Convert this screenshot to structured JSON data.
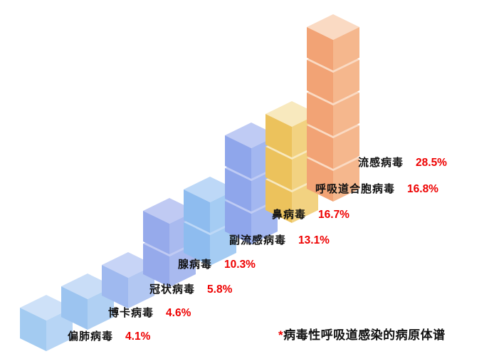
{
  "chart_data": {
    "type": "bar",
    "style": "isometric-cube-stack-staircase",
    "title": "",
    "xlabel": "",
    "ylabel": "",
    "legend": "none",
    "grid": false,
    "categories": [
      "偏肺病毒",
      "博卡病毒",
      "冠状病毒",
      "腺病毒",
      "副流感病毒",
      "鼻病毒",
      "呼吸道合胞病毒",
      "流感病毒"
    ],
    "values": [
      4.1,
      4.6,
      5.8,
      10.3,
      13.1,
      16.7,
      16.8,
      28.5
    ],
    "value_labels": [
      "4.1%",
      "4.6%",
      "5.8%",
      "10.3%",
      "13.1%",
      "16.7%",
      "16.8%",
      "28.5%"
    ],
    "cube_counts": [
      1,
      1,
      1,
      2,
      2,
      3,
      3,
      5
    ],
    "stack_colors": [
      {
        "top": "#CEE1F8",
        "left": "#A3CBF1",
        "right": "#B7D5F5"
      },
      {
        "top": "#C9DDF7",
        "left": "#9CC4F0",
        "right": "#B0D0F3"
      },
      {
        "top": "#C7D4F6",
        "left": "#9FB9EF",
        "right": "#B2C7F2"
      },
      {
        "top": "#C0CAF3",
        "left": "#96AAEB",
        "right": "#A9BAEF"
      },
      {
        "top": "#BDD8F7",
        "left": "#8EBCEF",
        "right": "#A5CCF3"
      },
      {
        "top": "#BFCBF4",
        "left": "#8FA6EB",
        "right": "#A3B7F0"
      },
      {
        "top": "#F8E9BE",
        "left": "#ECC25C",
        "right": "#F2D281"
      },
      {
        "top": "#FADAC3",
        "left": "#F2A375",
        "right": "#F5B78D"
      }
    ],
    "label_text_color": "#111111",
    "value_text_color": "#ee0000",
    "footnote": {
      "marker": "*",
      "marker_color": "#ee0000",
      "text": "病毒性呼吸道感染的病原体谱"
    }
  }
}
